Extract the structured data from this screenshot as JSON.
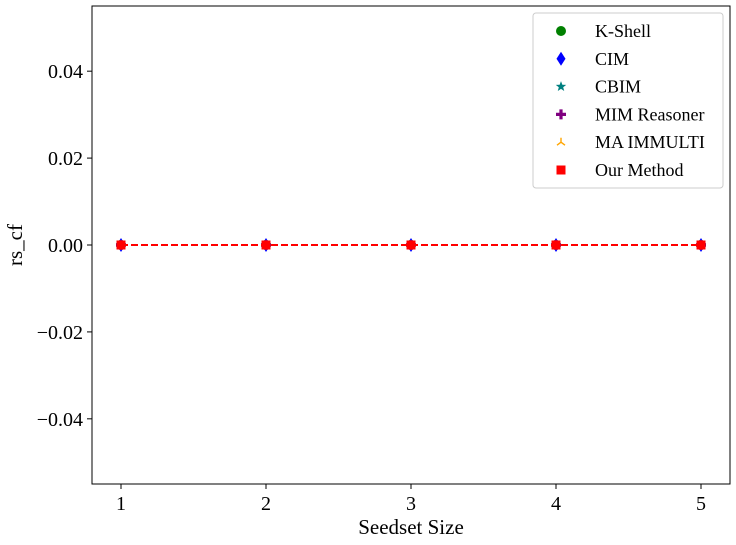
{
  "chart_data": {
    "type": "scatter",
    "xlabel": "Seedset Size",
    "ylabel": "rs_cf",
    "x": [
      1,
      2,
      3,
      4,
      5
    ],
    "xlim": [
      0.8,
      5.2
    ],
    "ylim": [
      -0.055,
      0.055
    ],
    "x_ticks": [
      1,
      2,
      3,
      4,
      5
    ],
    "x_tick_labels": [
      "1",
      "2",
      "3",
      "4",
      "5"
    ],
    "y_ticks": [
      0.04,
      0.02,
      0.0,
      -0.02,
      -0.04
    ],
    "y_tick_labels": [
      "0.04",
      "0.02",
      "0.00",
      "−0.02",
      "−0.04"
    ],
    "legend_position": "top-right",
    "grid": false,
    "series": [
      {
        "name": "K-Shell",
        "marker": "circle",
        "color": "#008000",
        "values": [
          0,
          0,
          0,
          0,
          0
        ],
        "line": false
      },
      {
        "name": "CIM",
        "marker": "diamond",
        "color": "#0000ff",
        "values": [
          0,
          0,
          0,
          0,
          0
        ],
        "line": false
      },
      {
        "name": "CBIM",
        "marker": "star",
        "color": "#008080",
        "values": [
          0,
          0,
          0,
          0,
          0
        ],
        "line": false
      },
      {
        "name": "MIM Reasoner",
        "marker": "plus",
        "color": "#800080",
        "values": [
          0,
          0,
          0,
          0,
          0
        ],
        "line": false
      },
      {
        "name": "MA IMMULTI",
        "marker": "tri",
        "color": "#ffa500",
        "values": [
          0,
          0,
          0,
          0,
          0
        ],
        "line": false
      },
      {
        "name": "Our Method",
        "marker": "square",
        "color": "#ff0000",
        "values": [
          0,
          0,
          0,
          0,
          0
        ],
        "line": true,
        "line_style": "dashed"
      }
    ]
  }
}
